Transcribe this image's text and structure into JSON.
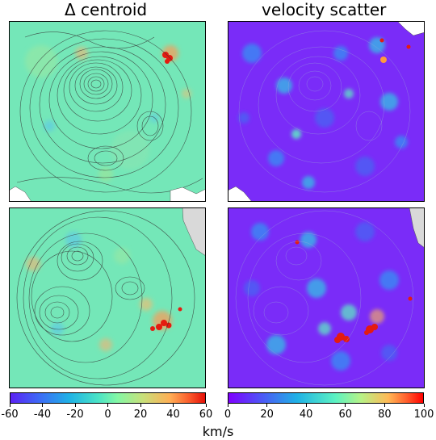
{
  "chart_data": {
    "type": "heatmap",
    "panels": [
      {
        "title": "Δ centroid",
        "row": "top",
        "colormap": "rainbow-diverging"
      },
      {
        "title": "velocity scatter",
        "row": "top",
        "colormap": "rainbow"
      },
      {
        "title": "",
        "row": "bottom",
        "colormap": "rainbow-diverging"
      },
      {
        "title": "",
        "row": "bottom",
        "colormap": "rainbow"
      }
    ],
    "colorbars": [
      {
        "min": -60,
        "max": 60,
        "ticks": [
          "-60",
          "-40",
          "-20",
          "0",
          "20",
          "40",
          "60"
        ]
      },
      {
        "min": 0,
        "max": 100,
        "ticks": [
          "0",
          "20",
          "40",
          "60",
          "80",
          "100"
        ]
      }
    ],
    "colorbar_label": "km/s",
    "contours": true
  },
  "titles": {
    "left": "Δ centroid",
    "right": "velocity scatter"
  },
  "colors": {
    "delta_bg": "#74e7b8",
    "scatter_bg": "#7a2cf8",
    "contour": "#333333",
    "hot": "#e41b10"
  }
}
